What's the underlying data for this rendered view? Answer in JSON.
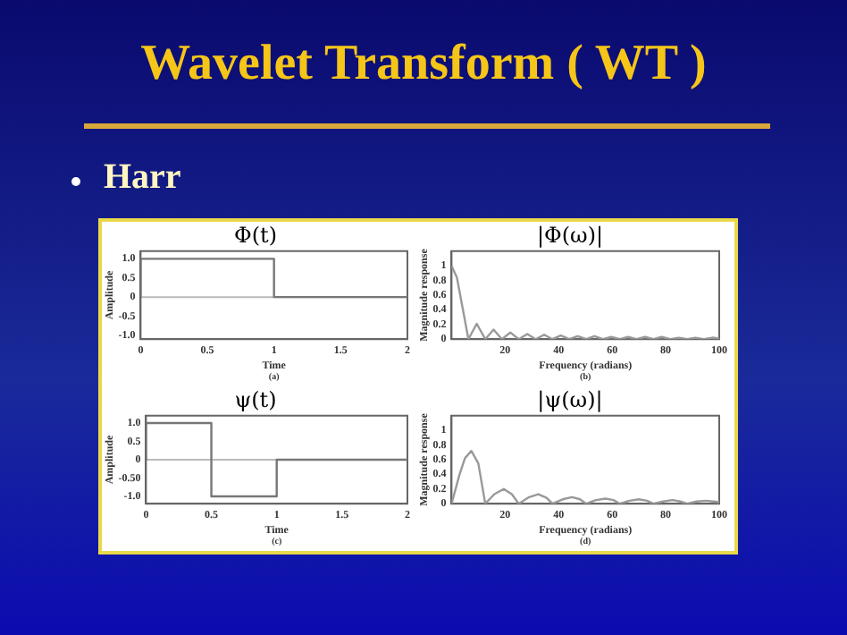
{
  "chart_data": [
    {
      "type": "other",
      "title": "Wavelet Transform ( WT )",
      "subtitle": "Harr"
    },
    {
      "type": "line",
      "title": "Φ(t)",
      "xlabel": "Time",
      "ylabel": "Amplitude",
      "annotations": [
        "(a)"
      ],
      "x": [
        0,
        0,
        1,
        1,
        2
      ],
      "xlim": [
        0,
        2
      ],
      "xticks": [
        0,
        0.5,
        1,
        1.5,
        2
      ],
      "ylim": [
        -1.1,
        1.2
      ],
      "yticks": [
        {
          "value": -1,
          "label": "-1.0"
        },
        -0.5,
        0,
        0.5,
        {
          "value": 1,
          "label": "1.0"
        }
      ],
      "grid": false,
      "legend": false,
      "ref_lines": [
        {
          "axis": "y",
          "value": 0,
          "color": "#bbbbbb"
        }
      ],
      "series": [
        {
          "color": "#777777",
          "values": [
            0,
            1,
            1,
            0,
            0
          ]
        }
      ]
    },
    {
      "type": "line",
      "title": "|Φ(ω)|",
      "xlabel": "Frequency (radians)",
      "ylabel": "Magnitude response",
      "annotations": [
        "(b)"
      ],
      "x": [
        0,
        2,
        4,
        6.3,
        9.4,
        12.6,
        15.7,
        18.8,
        22,
        25.1,
        28.3,
        31.4,
        34.6,
        37.7,
        40.8,
        44,
        47.1,
        50.3,
        53.4,
        56.5,
        59.7,
        62.8,
        66,
        69.1,
        72.3,
        75.4,
        78.5,
        81.7,
        84.8,
        88,
        91.1,
        94.2,
        97.4,
        100
      ],
      "xlim": [
        0,
        100
      ],
      "xticks": [
        20,
        40,
        60,
        80,
        100
      ],
      "ylim": [
        0,
        1.2
      ],
      "yticks": [
        0,
        0.2,
        0.4,
        0.6,
        0.8,
        1
      ],
      "grid": false,
      "legend": false,
      "series": [
        {
          "color": "#999999",
          "values": [
            1,
            0.84,
            0.45,
            0,
            0.21,
            0,
            0.13,
            0,
            0.09,
            0,
            0.07,
            0,
            0.06,
            0,
            0.05,
            0,
            0.04,
            0,
            0.04,
            0,
            0.03,
            0,
            0.03,
            0,
            0.03,
            0,
            0.03,
            0,
            0.02,
            0,
            0.02,
            0,
            0.02,
            0.01
          ]
        }
      ]
    },
    {
      "type": "line",
      "title": "ψ(t)",
      "xlabel": "Time",
      "ylabel": "Amplitude",
      "annotations": [
        "(c)"
      ],
      "x": [
        0,
        0,
        0.5,
        0.5,
        1,
        1,
        2
      ],
      "xlim": [
        0,
        2
      ],
      "xticks": [
        0,
        0.5,
        1,
        1.5,
        2
      ],
      "ylim": [
        -1.2,
        1.2
      ],
      "yticks": [
        {
          "value": -1,
          "label": "-1.0"
        },
        {
          "value": -0.5,
          "label": "-0.50"
        },
        0,
        0.5,
        {
          "value": 1,
          "label": "1.0"
        }
      ],
      "grid": false,
      "legend": false,
      "ref_lines": [
        {
          "axis": "y",
          "value": 0,
          "color": "#bbbbbb"
        }
      ],
      "series": [
        {
          "color": "#777777",
          "values": [
            0,
            1,
            1,
            -1,
            -1,
            0,
            0
          ]
        }
      ]
    },
    {
      "type": "line",
      "title": "|ψ(ω)|",
      "xlabel": "Frequency (radians)",
      "ylabel": "Magnitude response",
      "annotations": [
        "(d)"
      ],
      "x": [
        0,
        3,
        5,
        7.4,
        10,
        12.6,
        16,
        19.5,
        22.5,
        25.1,
        29,
        32.4,
        35.5,
        37.7,
        41.5,
        45,
        48,
        50.3,
        54,
        57.5,
        60.5,
        62.8,
        66.5,
        70,
        73,
        75.4,
        79,
        82.6,
        85.5,
        88,
        91.5,
        95,
        98,
        100
      ],
      "xlim": [
        0,
        100
      ],
      "xticks": [
        20,
        40,
        60,
        80,
        100
      ],
      "ylim": [
        0,
        1.2
      ],
      "yticks": [
        0,
        0.2,
        0.4,
        0.6,
        0.8,
        1
      ],
      "grid": false,
      "legend": false,
      "series": [
        {
          "color": "#999999",
          "values": [
            0,
            0.4,
            0.62,
            0.72,
            0.55,
            0,
            0.13,
            0.2,
            0.13,
            0,
            0.09,
            0.13,
            0.08,
            0,
            0.06,
            0.09,
            0.06,
            0,
            0.05,
            0.07,
            0.05,
            0,
            0.04,
            0.06,
            0.04,
            0,
            0.03,
            0.05,
            0.03,
            0,
            0.03,
            0.04,
            0.03,
            0.02
          ]
        }
      ]
    }
  ]
}
